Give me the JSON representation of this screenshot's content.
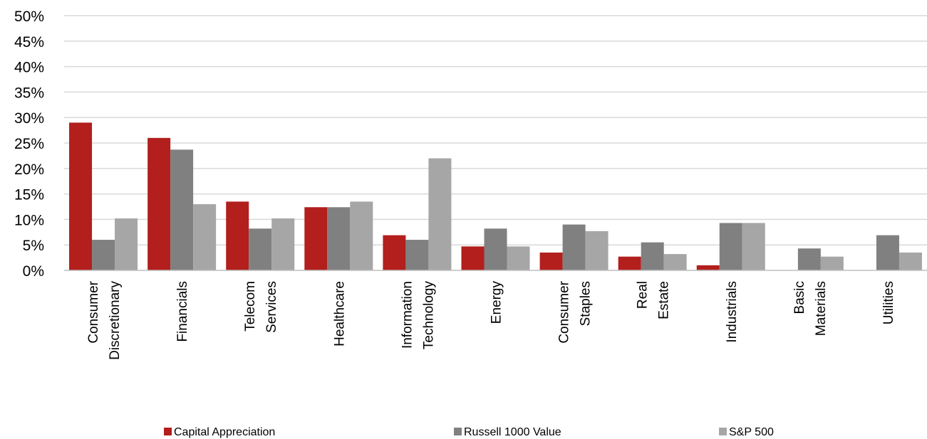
{
  "chart_data": {
    "type": "bar",
    "categories": [
      [
        "Consumer",
        "Discretionary"
      ],
      [
        "Financials"
      ],
      [
        "Telecom",
        "Services"
      ],
      [
        "Healthcare"
      ],
      [
        "Information",
        "Technology"
      ],
      [
        "Energy"
      ],
      [
        "Consumer",
        "Staples"
      ],
      [
        "Real",
        "Estate"
      ],
      [
        "Industrials"
      ],
      [
        "Basic",
        "Materials"
      ],
      [
        "Utilities"
      ]
    ],
    "series": [
      {
        "name": "Capital Appreciation",
        "color": "#b21f1c",
        "values": [
          29,
          26,
          13.5,
          12.4,
          6.9,
          4.7,
          3.5,
          2.7,
          1.0,
          0,
          0
        ]
      },
      {
        "name": "Russell 1000 Value",
        "color": "#808080",
        "values": [
          6.0,
          23.7,
          8.2,
          12.4,
          6.0,
          8.2,
          9.0,
          5.5,
          9.3,
          4.3,
          6.9
        ]
      },
      {
        "name": "S&P 500",
        "color": "#a6a6a6",
        "values": [
          10.2,
          13.0,
          10.2,
          13.5,
          22.0,
          4.7,
          7.7,
          3.2,
          9.3,
          2.7,
          3.5
        ]
      }
    ],
    "y_ticks": [
      "0%",
      "5%",
      "10%",
      "15%",
      "20%",
      "25%",
      "30%",
      "35%",
      "40%",
      "45%",
      "50%"
    ],
    "ylim": [
      0,
      50
    ],
    "grid": true,
    "legend_position": "bottom"
  }
}
